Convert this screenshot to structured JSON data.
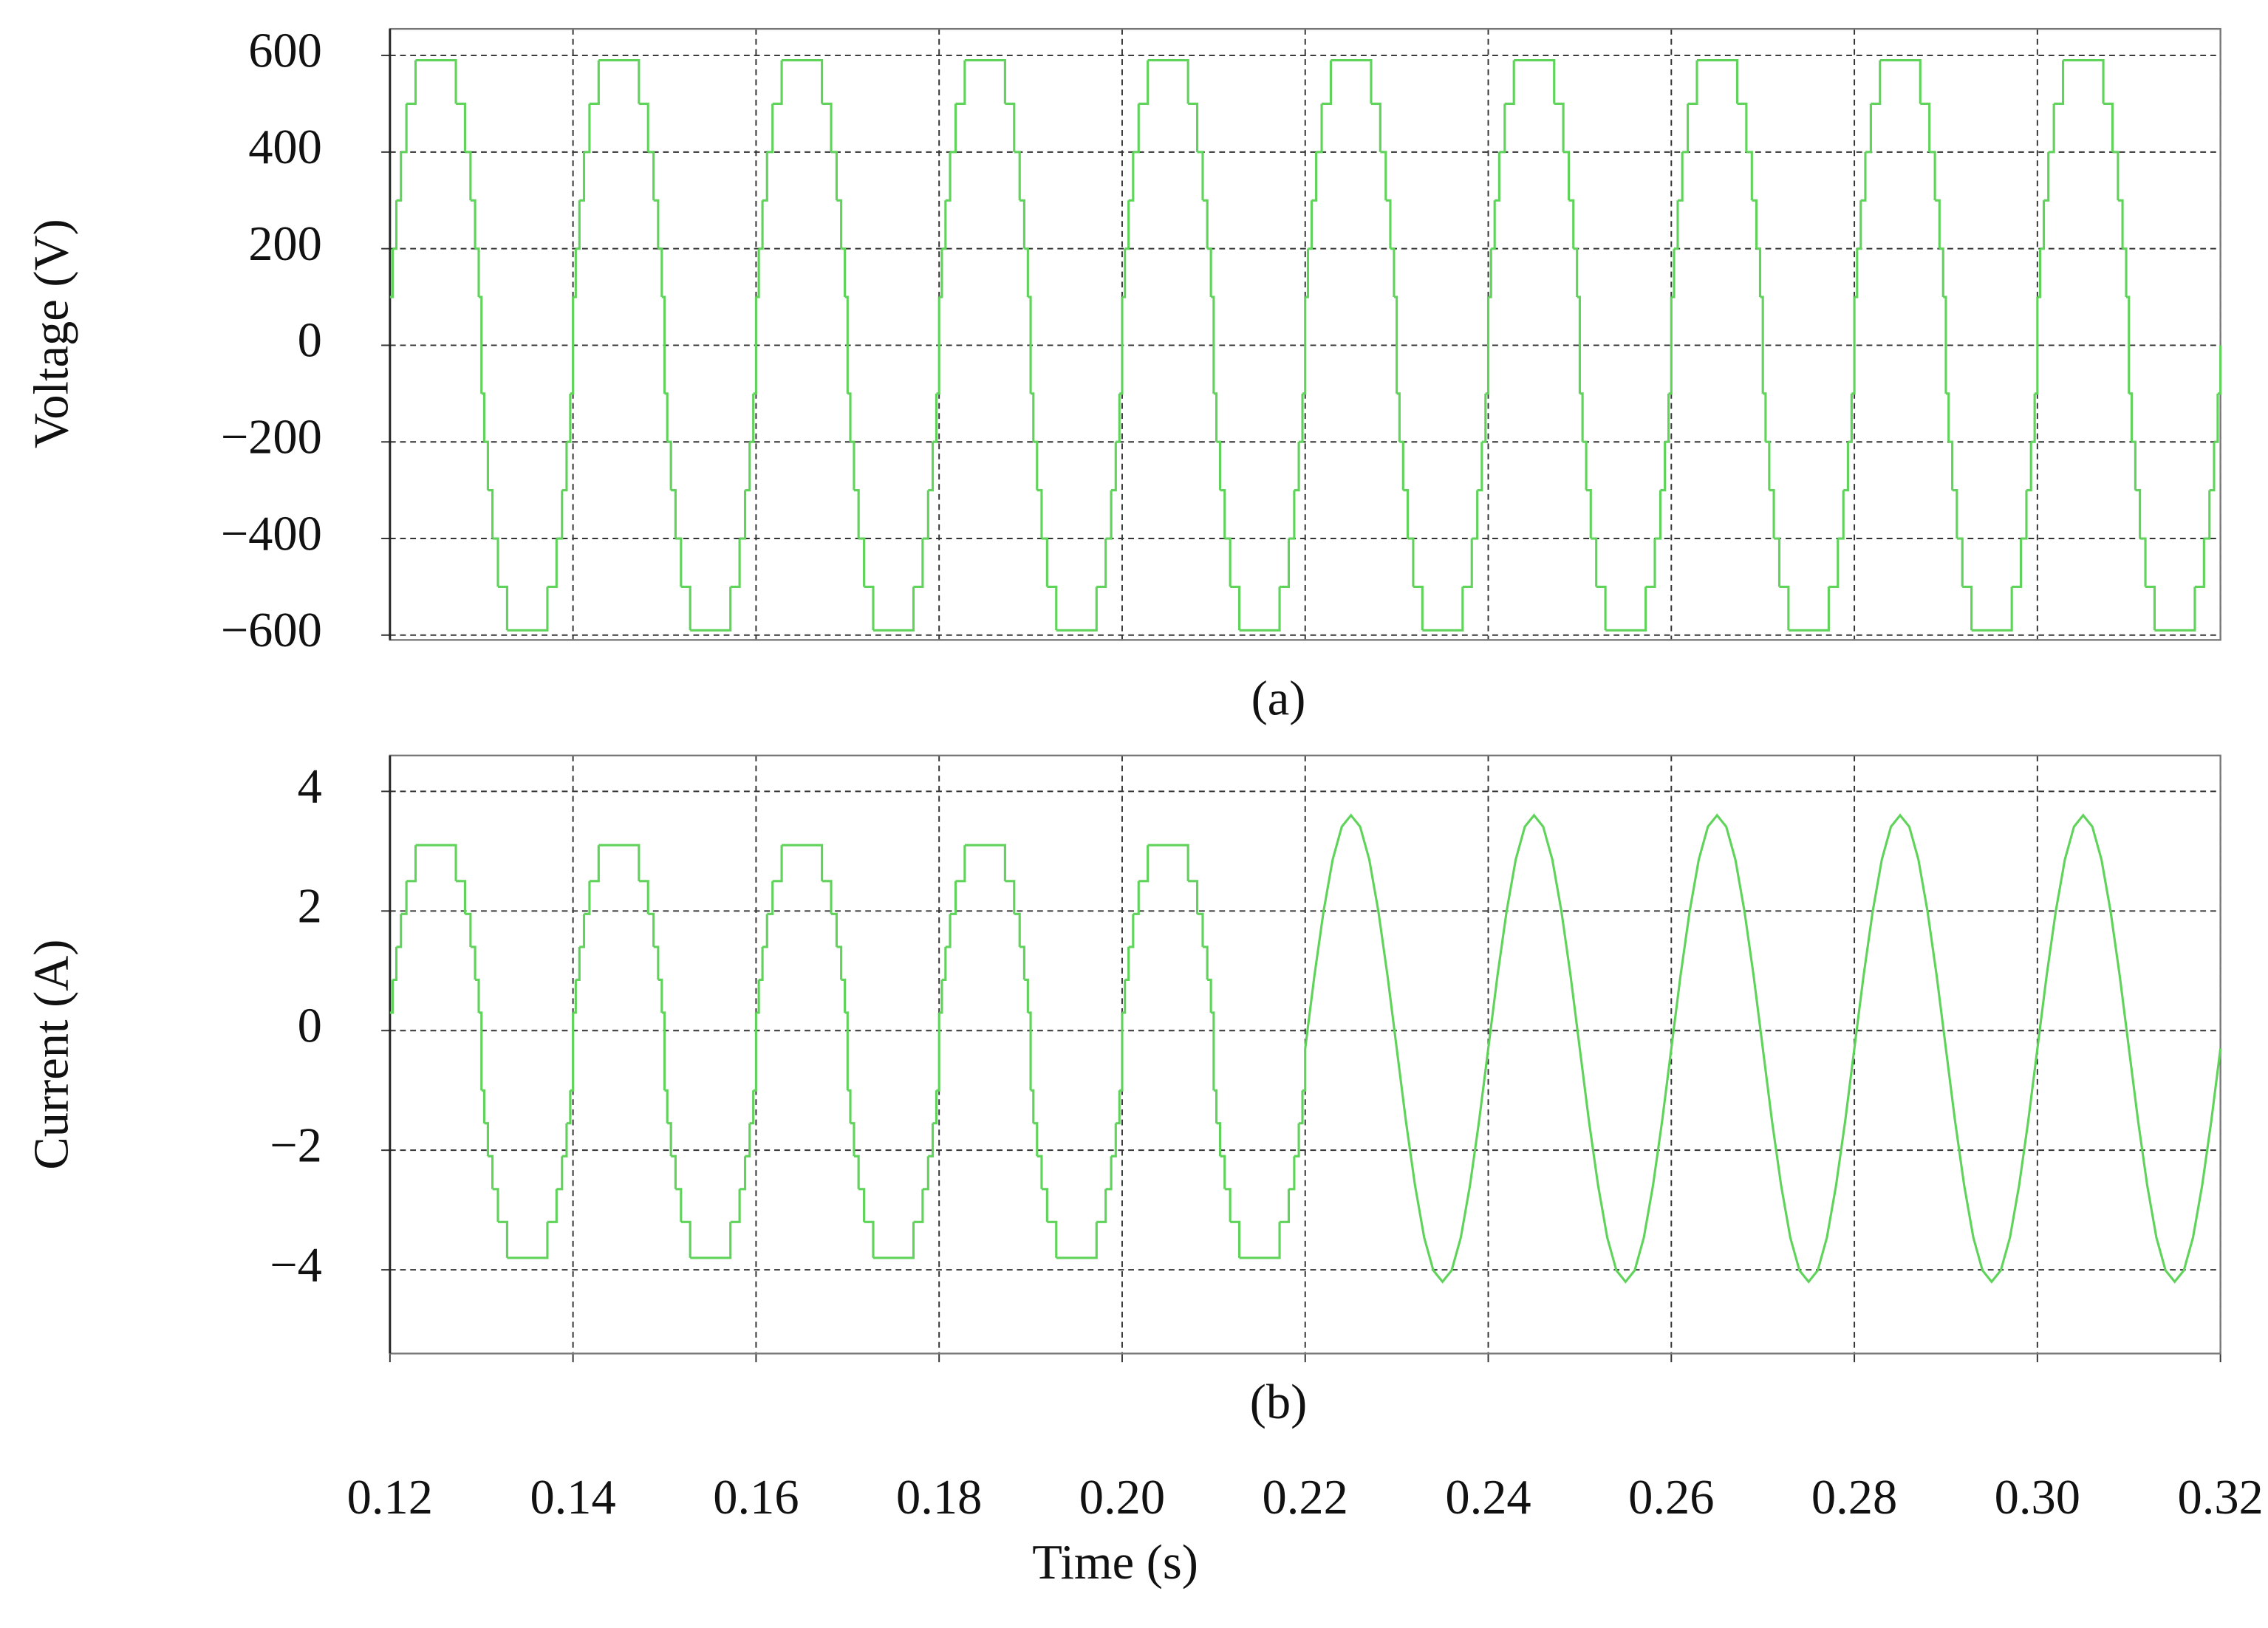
{
  "chart_data": [
    {
      "type": "step-line",
      "ylabel": "Voltage (V)",
      "caption": "(a)",
      "xlim": [
        0.12,
        0.32
      ],
      "ylim": [
        -610,
        655
      ],
      "xticks": [
        0.12,
        0.14,
        0.16,
        0.18,
        0.2,
        0.22,
        0.24,
        0.26,
        0.28,
        0.3,
        0.32
      ],
      "yticks": [
        600,
        400,
        200,
        0,
        {
          "value": -200,
          "label": "−200"
        },
        {
          "value": -400,
          "label": "−400"
        },
        {
          "value": -600,
          "label": "−600"
        }
      ],
      "grid": true,
      "series": [
        {
          "color": "#5fd35a",
          "step": true,
          "x": [
            0.12,
            0.1203,
            0.1207,
            0.1212,
            0.1218,
            0.1228,
            0.1272,
            0.1282,
            0.1288,
            0.1293,
            0.1297,
            0.13,
            0.1303,
            0.1307,
            0.1312,
            0.1318,
            0.1328,
            0.1372,
            0.1382,
            0.1388,
            0.1393,
            0.1397,
            0.14,
            0.1403,
            0.1407,
            0.1412,
            0.1418,
            0.1428,
            0.1472,
            0.1482,
            0.1488,
            0.1493,
            0.1497,
            0.15,
            0.1503,
            0.1507,
            0.1512,
            0.1518,
            0.1528,
            0.1572,
            0.1582,
            0.1588,
            0.1593,
            0.1597,
            0.16,
            0.1603,
            0.1607,
            0.1612,
            0.1618,
            0.1628,
            0.1672,
            0.1682,
            0.1688,
            0.1693,
            0.1697,
            0.17,
            0.1703,
            0.1707,
            0.1712,
            0.1718,
            0.1728,
            0.1772,
            0.1782,
            0.1788,
            0.1793,
            0.1797,
            0.18,
            0.1803,
            0.1807,
            0.1812,
            0.1818,
            0.1828,
            0.1872,
            0.1882,
            0.1888,
            0.1893,
            0.1897,
            0.19,
            0.1903,
            0.1907,
            0.1912,
            0.1918,
            0.1928,
            0.1972,
            0.1982,
            0.1988,
            0.1993,
            0.1997,
            0.2,
            0.2003,
            0.2007,
            0.2012,
            0.2018,
            0.2028,
            0.2072,
            0.2082,
            0.2088,
            0.2093,
            0.2097,
            0.21,
            0.2103,
            0.2107,
            0.2112,
            0.2118,
            0.2128,
            0.2172,
            0.2182,
            0.2188,
            0.2193,
            0.2197,
            0.22,
            0.2203,
            0.2207,
            0.2212,
            0.2218,
            0.2228,
            0.2272,
            0.2282,
            0.2288,
            0.2293,
            0.2297,
            0.23,
            0.2303,
            0.2307,
            0.2312,
            0.2318,
            0.2328,
            0.2372,
            0.2382,
            0.2388,
            0.2393,
            0.2397,
            0.24,
            0.2403,
            0.2407,
            0.2412,
            0.2418,
            0.2428,
            0.2472,
            0.2482,
            0.2488,
            0.2493,
            0.2497,
            0.25,
            0.2503,
            0.2507,
            0.2512,
            0.2518,
            0.2528,
            0.2572,
            0.2582,
            0.2588,
            0.2593,
            0.2597,
            0.26,
            0.2603,
            0.2607,
            0.2612,
            0.2618,
            0.2628,
            0.2672,
            0.2682,
            0.2688,
            0.2693,
            0.2697,
            0.27,
            0.2703,
            0.2707,
            0.2712,
            0.2718,
            0.2728,
            0.2772,
            0.2782,
            0.2788,
            0.2793,
            0.2797,
            0.28,
            0.2803,
            0.2807,
            0.2812,
            0.2818,
            0.2828,
            0.2872,
            0.2882,
            0.2888,
            0.2893,
            0.2897,
            0.29,
            0.2903,
            0.2907,
            0.2912,
            0.2918,
            0.2928,
            0.2972,
            0.2982,
            0.2988,
            0.2993,
            0.2997,
            0.3,
            0.3003,
            0.3007,
            0.3012,
            0.3018,
            0.3028,
            0.3072,
            0.3082,
            0.3088,
            0.3093,
            0.3097,
            0.31,
            0.3103,
            0.3107,
            0.3112,
            0.3118,
            0.3128,
            0.3172,
            0.3182,
            0.3188,
            0.3193,
            0.3197,
            0.32
          ],
          "values": [
            100,
            200,
            300,
            400,
            500,
            590,
            500,
            400,
            300,
            200,
            100,
            -100,
            -200,
            -300,
            -400,
            -500,
            -590,
            -500,
            -400,
            -300,
            -200,
            -100,
            100,
            200,
            300,
            400,
            500,
            590,
            500,
            400,
            300,
            200,
            100,
            -100,
            -200,
            -300,
            -400,
            -500,
            -590,
            -500,
            -400,
            -300,
            -200,
            -100,
            100,
            200,
            300,
            400,
            500,
            590,
            500,
            400,
            300,
            200,
            100,
            -100,
            -200,
            -300,
            -400,
            -500,
            -590,
            -500,
            -400,
            -300,
            -200,
            -100,
            100,
            200,
            300,
            400,
            500,
            590,
            500,
            400,
            300,
            200,
            100,
            -100,
            -200,
            -300,
            -400,
            -500,
            -590,
            -500,
            -400,
            -300,
            -200,
            -100,
            100,
            200,
            300,
            400,
            500,
            590,
            500,
            400,
            300,
            200,
            100,
            -100,
            -200,
            -300,
            -400,
            -500,
            -590,
            -500,
            -400,
            -300,
            -200,
            -100,
            100,
            200,
            300,
            400,
            500,
            590,
            500,
            400,
            300,
            200,
            100,
            -100,
            -200,
            -300,
            -400,
            -500,
            -590,
            -500,
            -400,
            -300,
            -200,
            -100,
            100,
            200,
            300,
            400,
            500,
            590,
            500,
            400,
            300,
            200,
            100,
            -100,
            -200,
            -300,
            -400,
            -500,
            -590,
            -500,
            -400,
            -300,
            -200,
            -100,
            100,
            200,
            300,
            400,
            500,
            590,
            500,
            400,
            300,
            200,
            100,
            -100,
            -200,
            -300,
            -400,
            -500,
            -590,
            -500,
            -400,
            -300,
            -200,
            -100,
            100,
            200,
            300,
            400,
            500,
            590,
            500,
            400,
            300,
            200,
            100,
            -100,
            -200,
            -300,
            -400,
            -500,
            -590,
            -500,
            -400,
            -300,
            -200,
            -100,
            100,
            200,
            300,
            400,
            500,
            590,
            500,
            400,
            300,
            200,
            100,
            -100,
            -200,
            -300,
            -400,
            -500,
            -590,
            -500,
            -400,
            -300,
            -200,
            -100,
            0
          ]
        }
      ]
    },
    {
      "type": "step-line",
      "ylabel": "Current (A)",
      "caption": "(b)",
      "xlabel": "Time (s)",
      "xlim": [
        0.12,
        0.32
      ],
      "ylim": [
        -5.4,
        4.6
      ],
      "xticks": [
        0.12,
        0.14,
        0.16,
        0.18,
        {
          "value": 0.2,
          "label": "0.20"
        },
        0.22,
        0.24,
        0.26,
        0.28,
        {
          "value": 0.3,
          "label": "0.30"
        },
        0.32
      ],
      "yticks": [
        4,
        2,
        0,
        {
          "value": -2,
          "label": "−2"
        },
        {
          "value": -4,
          "label": "−4"
        }
      ],
      "grid": true,
      "series": [
        {
          "color": "#5fd35a",
          "step": true,
          "x": [
            0.12,
            0.1203,
            0.1207,
            0.1212,
            0.1218,
            0.1228,
            0.1272,
            0.1282,
            0.1288,
            0.1293,
            0.1297,
            0.13,
            0.1303,
            0.1307,
            0.1312,
            0.1318,
            0.1328,
            0.1372,
            0.1382,
            0.1388,
            0.1393,
            0.1397,
            0.14,
            0.1403,
            0.1407,
            0.1412,
            0.1418,
            0.1428,
            0.1472,
            0.1482,
            0.1488,
            0.1493,
            0.1497,
            0.15,
            0.1503,
            0.1507,
            0.1512,
            0.1518,
            0.1528,
            0.1572,
            0.1582,
            0.1588,
            0.1593,
            0.1597,
            0.16,
            0.1603,
            0.1607,
            0.1612,
            0.1618,
            0.1628,
            0.1672,
            0.1682,
            0.1688,
            0.1693,
            0.1697,
            0.17,
            0.1703,
            0.1707,
            0.1712,
            0.1718,
            0.1728,
            0.1772,
            0.1782,
            0.1788,
            0.1793,
            0.1797,
            0.18,
            0.1803,
            0.1807,
            0.1812,
            0.1818,
            0.1828,
            0.1872,
            0.1882,
            0.1888,
            0.1893,
            0.1897,
            0.19,
            0.1903,
            0.1907,
            0.1912,
            0.1918,
            0.1928,
            0.1972,
            0.1982,
            0.1988,
            0.1993,
            0.1997,
            0.2,
            0.2003,
            0.2007,
            0.2012,
            0.2018,
            0.2028,
            0.2072,
            0.2082,
            0.2088,
            0.2093,
            0.2097,
            0.21,
            0.2103,
            0.2107,
            0.2112,
            0.2118,
            0.2128,
            0.2172,
            0.2182,
            0.2188,
            0.2193,
            0.2197,
            0.22
          ],
          "values": [
            0.3,
            0.85,
            1.4,
            1.95,
            2.5,
            3.1,
            2.5,
            1.95,
            1.4,
            0.85,
            0.3,
            -1.0,
            -1.55,
            -2.1,
            -2.65,
            -3.2,
            -3.8,
            -3.2,
            -2.65,
            -2.1,
            -1.55,
            -1.0,
            0.3,
            0.85,
            1.4,
            1.95,
            2.5,
            3.1,
            2.5,
            1.95,
            1.4,
            0.85,
            0.3,
            -1.0,
            -1.55,
            -2.1,
            -2.65,
            -3.2,
            -3.8,
            -3.2,
            -2.65,
            -2.1,
            -1.55,
            -1.0,
            0.3,
            0.85,
            1.4,
            1.95,
            2.5,
            3.1,
            2.5,
            1.95,
            1.4,
            0.85,
            0.3,
            -1.0,
            -1.55,
            -2.1,
            -2.65,
            -3.2,
            -3.8,
            -3.2,
            -2.65,
            -2.1,
            -1.55,
            -1.0,
            0.3,
            0.85,
            1.4,
            1.95,
            2.5,
            3.1,
            2.5,
            1.95,
            1.4,
            0.85,
            0.3,
            -1.0,
            -1.55,
            -2.1,
            -2.65,
            -3.2,
            -3.8,
            -3.2,
            -2.65,
            -2.1,
            -1.55,
            -1.0,
            0.3,
            0.85,
            1.4,
            1.95,
            2.5,
            3.1,
            2.5,
            1.95,
            1.4,
            0.85,
            0.3,
            -1.0,
            -1.55,
            -2.1,
            -2.65,
            -3.2,
            -3.8,
            -3.2,
            -2.65,
            -2.1,
            -1.55,
            -1.0,
            -0.3
          ]
        },
        {
          "color": "#5fd35a",
          "step": false,
          "x": [
            0.22,
            0.221,
            0.222,
            0.223,
            0.224,
            0.225,
            0.226,
            0.227,
            0.228,
            0.229,
            0.23,
            0.231,
            0.232,
            0.233,
            0.234,
            0.235,
            0.236,
            0.237,
            0.238,
            0.239,
            0.24,
            0.241,
            0.242,
            0.243,
            0.244,
            0.245,
            0.246,
            0.247,
            0.248,
            0.249,
            0.25,
            0.251,
            0.252,
            0.253,
            0.254,
            0.255,
            0.256,
            0.257,
            0.258,
            0.259,
            0.26,
            0.261,
            0.262,
            0.263,
            0.264,
            0.265,
            0.266,
            0.267,
            0.268,
            0.269,
            0.27,
            0.271,
            0.272,
            0.273,
            0.274,
            0.275,
            0.276,
            0.277,
            0.278,
            0.279,
            0.28,
            0.281,
            0.282,
            0.283,
            0.284,
            0.285,
            0.286,
            0.287,
            0.288,
            0.289,
            0.29,
            0.291,
            0.292,
            0.293,
            0.294,
            0.295,
            0.296,
            0.297,
            0.298,
            0.299,
            0.3,
            0.301,
            0.302,
            0.303,
            0.304,
            0.305,
            0.306,
            0.307,
            0.308,
            0.309,
            0.31,
            0.311,
            0.312,
            0.313,
            0.314,
            0.315,
            0.316,
            0.317,
            0.318,
            0.319,
            0.32
          ],
          "values": [
            -0.3,
            0.91,
            1.99,
            2.86,
            3.41,
            3.6,
            3.41,
            2.86,
            1.99,
            0.91,
            -0.3,
            -1.51,
            -2.59,
            -3.46,
            -4.01,
            -4.2,
            -4.01,
            -3.46,
            -2.59,
            -1.51,
            -0.3,
            0.91,
            1.99,
            2.86,
            3.41,
            3.6,
            3.41,
            2.86,
            1.99,
            0.91,
            -0.3,
            -1.51,
            -2.59,
            -3.46,
            -4.01,
            -4.2,
            -4.01,
            -3.46,
            -2.59,
            -1.51,
            -0.3,
            0.91,
            1.99,
            2.86,
            3.41,
            3.6,
            3.41,
            2.86,
            1.99,
            0.91,
            -0.3,
            -1.51,
            -2.59,
            -3.46,
            -4.01,
            -4.2,
            -4.01,
            -3.46,
            -2.59,
            -1.51,
            -0.3,
            0.91,
            1.99,
            2.86,
            3.41,
            3.6,
            3.41,
            2.86,
            1.99,
            0.91,
            -0.3,
            -1.51,
            -2.59,
            -3.46,
            -4.01,
            -4.2,
            -4.01,
            -3.46,
            -2.59,
            -1.51,
            -0.3,
            0.91,
            1.99,
            2.86,
            3.41,
            3.6,
            3.41,
            2.86,
            1.99,
            0.91,
            -0.3,
            -1.51,
            -2.59,
            -3.46,
            -4.01,
            -4.2,
            -4.01,
            -3.46,
            -2.59,
            -1.51,
            -0.3
          ]
        }
      ]
    }
  ]
}
